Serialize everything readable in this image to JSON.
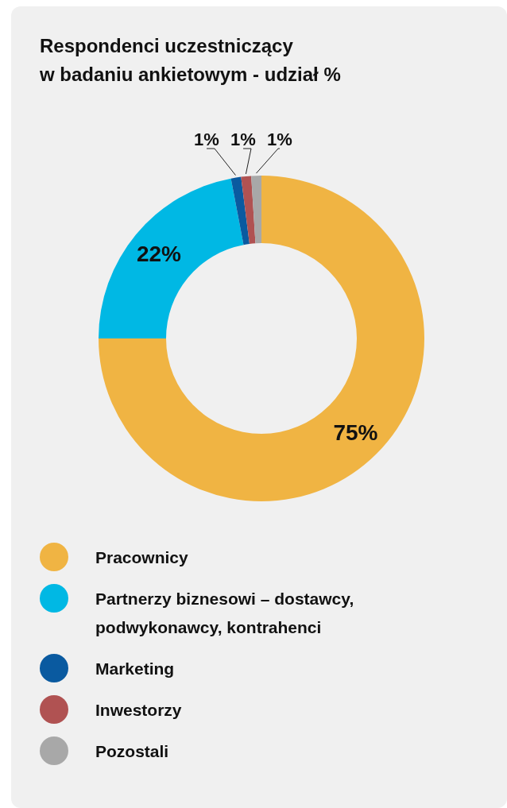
{
  "chart_data": {
    "type": "donut",
    "title": "Respondenci uczestniczący\nw badaniu ankietowym - udział %",
    "categories": [
      "Pracownicy",
      "Partnerzy biznesowi – dostawcy, podwykonawcy, kontrahenci",
      "Marketing",
      "Inwestorzy",
      "Pozostali"
    ],
    "values": [
      75,
      22,
      1,
      1,
      1
    ],
    "colors": [
      "#f0b443",
      "#00b8e4",
      "#0a5aa0",
      "#b05252",
      "#a8a8a8"
    ],
    "value_labels": [
      "75%",
      "22%",
      "1%",
      "1%",
      "1%"
    ],
    "legend": "bottom"
  }
}
